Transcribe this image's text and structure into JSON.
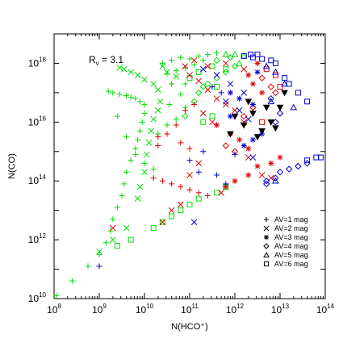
{
  "chart_data": {
    "type": "scatter",
    "xlabel": "N(HCO⁺)",
    "ylabel": "N(CO)",
    "x_log": true,
    "y_log": true,
    "xlim": [
      100000000.0,
      100000000000000.0
    ],
    "ylim": [
      10000000000.0,
      1e+19
    ],
    "x_ticks": [
      {
        "base": "10",
        "exp": "8",
        "value": 100000000.0
      },
      {
        "base": "10",
        "exp": "9",
        "value": 1000000000.0
      },
      {
        "base": "10",
        "exp": "10",
        "value": 10000000000.0
      },
      {
        "base": "10",
        "exp": "11",
        "value": 100000000000.0
      },
      {
        "base": "10",
        "exp": "12",
        "value": 1000000000000.0
      },
      {
        "base": "10",
        "exp": "13",
        "value": 10000000000000.0
      },
      {
        "base": "10",
        "exp": "14",
        "value": 100000000000000.0
      }
    ],
    "y_ticks": [
      {
        "base": "10",
        "exp": "10",
        "value": 10000000000.0
      },
      {
        "base": "10",
        "exp": "12",
        "value": 1000000000000.0
      },
      {
        "base": "10",
        "exp": "14",
        "value": 100000000000000.0
      },
      {
        "base": "10",
        "exp": "16",
        "value": 1e+16
      },
      {
        "base": "10",
        "exp": "18",
        "value": 1e+18
      }
    ],
    "annotation": {
      "main": "R",
      "sub": "v",
      "rest": " = 3.1"
    },
    "grid": false,
    "legend_position": "lower-right",
    "legend": [
      {
        "label": "AV=1 mag",
        "marker": "plus"
      },
      {
        "label": "AV=2 mag",
        "marker": "cross"
      },
      {
        "label": "AV=3 mag",
        "marker": "asterisk"
      },
      {
        "label": "AV=4 mag",
        "marker": "diamond"
      },
      {
        "label": "AV=5 mag",
        "marker": "triangle"
      },
      {
        "label": "AV=6 mag",
        "marker": "square"
      }
    ],
    "colors": {
      "green": "#00dd00",
      "red": "#dd0000",
      "blue": "#0000cc",
      "black": "#000000"
    },
    "series": [
      {
        "marker": "plus",
        "color": "green",
        "points": [
          [
            8.05,
            10.1
          ],
          [
            8.4,
            10.6
          ],
          [
            8.75,
            11.1
          ],
          [
            9.0,
            11.5
          ],
          [
            9.15,
            11.9
          ],
          [
            9.25,
            12.3
          ],
          [
            9.3,
            12.7
          ],
          [
            9.4,
            13.1
          ],
          [
            9.5,
            13.5
          ],
          [
            9.55,
            13.9
          ],
          [
            9.6,
            14.3
          ],
          [
            9.7,
            14.7
          ],
          [
            9.8,
            15.1
          ],
          [
            9.85,
            15.4
          ],
          [
            9.9,
            15.7
          ],
          [
            9.95,
            16.0
          ],
          [
            10.0,
            16.3
          ],
          [
            10.0,
            16.6
          ],
          [
            9.9,
            16.7
          ],
          [
            9.8,
            16.8
          ],
          [
            9.7,
            16.85
          ],
          [
            9.6,
            16.9
          ],
          [
            9.45,
            16.95
          ],
          [
            9.3,
            17.0
          ],
          [
            9.2,
            17.05
          ],
          [
            9.4,
            16.2
          ],
          [
            9.6,
            15.5
          ],
          [
            9.8,
            14.9
          ],
          [
            10.0,
            14.6
          ],
          [
            10.2,
            14.4
          ]
        ]
      },
      {
        "marker": "cross",
        "color": "green",
        "points": [
          [
            9.0,
            11.6
          ],
          [
            9.3,
            12.0
          ],
          [
            9.6,
            12.4
          ],
          [
            9.85,
            13.4
          ],
          [
            9.9,
            13.8
          ],
          [
            10.0,
            14.3
          ],
          [
            10.05,
            14.9
          ],
          [
            10.1,
            15.3
          ],
          [
            10.15,
            15.7
          ],
          [
            10.2,
            16.1
          ],
          [
            10.3,
            16.4
          ],
          [
            10.35,
            16.7
          ],
          [
            10.2,
            17.3
          ],
          [
            10.0,
            17.45
          ],
          [
            9.85,
            17.6
          ],
          [
            9.7,
            17.7
          ],
          [
            9.55,
            17.8
          ],
          [
            9.45,
            17.85
          ],
          [
            10.4,
            17.9
          ],
          [
            10.5,
            17.7
          ],
          [
            10.7,
            17.55
          ],
          [
            10.3,
            17.1
          ]
        ]
      },
      {
        "marker": "plus",
        "color": "green",
        "points": [
          [
            10.4,
            18.0
          ],
          [
            10.6,
            18.1
          ],
          [
            10.8,
            18.2
          ],
          [
            11.0,
            18.15
          ],
          [
            11.2,
            18.25
          ],
          [
            11.4,
            18.3
          ],
          [
            11.6,
            18.35
          ],
          [
            11.3,
            18.1
          ],
          [
            11.1,
            17.95
          ],
          [
            10.9,
            17.85
          ],
          [
            10.7,
            17.75
          ],
          [
            10.5,
            17.65
          ],
          [
            10.6,
            17.3
          ],
          [
            10.8,
            16.95
          ],
          [
            10.9,
            16.5
          ],
          [
            10.7,
            16.1
          ],
          [
            10.5,
            15.9
          ],
          [
            10.3,
            15.6
          ],
          [
            10.55,
            16.6
          ],
          [
            10.9,
            17.3
          ]
        ]
      },
      {
        "marker": "square",
        "color": "green",
        "points": [
          [
            10.2,
            12.4
          ],
          [
            10.4,
            12.6
          ],
          [
            10.6,
            12.8
          ],
          [
            10.8,
            13.0
          ],
          [
            11.0,
            13.2
          ],
          [
            9.7,
            12.0
          ],
          [
            9.4,
            11.8
          ],
          [
            11.2,
            13.4
          ],
          [
            11.6,
            13.6
          ],
          [
            11.8,
            13.8
          ],
          [
            11.5,
            16.2
          ],
          [
            11.3,
            16.0
          ],
          [
            11.6,
            17.2
          ],
          [
            11.8,
            17.8
          ],
          [
            11.2,
            17.7
          ],
          [
            11.0,
            17.5
          ],
          [
            11.5,
            17.9
          ]
        ]
      },
      {
        "marker": "diamond",
        "color": "green",
        "points": [
          [
            11.2,
            17.0
          ],
          [
            11.4,
            17.3
          ],
          [
            11.6,
            17.5
          ],
          [
            11.8,
            17.7
          ],
          [
            12.0,
            17.9
          ],
          [
            11.9,
            18.2
          ],
          [
            11.6,
            18.1
          ],
          [
            11.3,
            17.2
          ],
          [
            11.1,
            16.7
          ],
          [
            10.9,
            16.2
          ]
        ]
      },
      {
        "marker": "triangle",
        "color": "green",
        "points": [
          [
            12.1,
            18.0
          ],
          [
            12.2,
            18.25
          ],
          [
            12.0,
            18.3
          ],
          [
            11.8,
            18.3
          ]
        ]
      },
      {
        "marker": "plus",
        "color": "red",
        "points": [
          [
            10.2,
            14.1
          ],
          [
            10.4,
            14.0
          ],
          [
            10.6,
            13.9
          ],
          [
            10.8,
            13.8
          ],
          [
            11.0,
            13.7
          ],
          [
            11.2,
            13.6
          ],
          [
            11.4,
            13.5
          ],
          [
            10.3,
            15.2
          ],
          [
            10.5,
            15.6
          ],
          [
            10.7,
            15.9
          ],
          [
            10.9,
            16.4
          ],
          [
            11.1,
            16.6
          ],
          [
            10.3,
            15.5
          ],
          [
            10.8,
            15.3
          ],
          [
            11.0,
            15.1
          ]
        ]
      },
      {
        "marker": "cross",
        "color": "red",
        "points": [
          [
            9.3,
            12.4
          ],
          [
            10.9,
            17.9
          ],
          [
            11.1,
            18.1
          ],
          [
            11.0,
            17.6
          ],
          [
            11.2,
            17.4
          ],
          [
            11.4,
            17.1
          ],
          [
            11.6,
            16.8
          ],
          [
            11.8,
            16.6
          ],
          [
            12.0,
            16.4
          ],
          [
            12.2,
            16.0
          ],
          [
            11.3,
            16.3
          ],
          [
            11.5,
            16.0
          ],
          [
            11.2,
            14.6
          ],
          [
            11.0,
            14.2
          ],
          [
            12.3,
            14.8
          ],
          [
            12.6,
            14.2
          ],
          [
            12.8,
            14.1
          ],
          [
            11.7,
            13.6
          ],
          [
            10.8,
            13.2
          ],
          [
            10.6,
            13.0
          ],
          [
            10.4,
            12.6
          ],
          [
            11.8,
            18.0
          ],
          [
            11.4,
            17.9
          ],
          [
            12.2,
            17.8
          ]
        ]
      },
      {
        "marker": "asterisk",
        "color": "red",
        "points": [
          [
            11.8,
            13.8
          ],
          [
            12.0,
            14.0
          ],
          [
            12.3,
            14.2
          ],
          [
            12.5,
            14.5
          ],
          [
            12.8,
            14.6
          ],
          [
            13.0,
            14.8
          ],
          [
            12.5,
            18.0
          ],
          [
            12.3,
            17.6
          ],
          [
            12.4,
            17.3
          ],
          [
            12.6,
            17.0
          ],
          [
            11.6,
            15.9
          ],
          [
            11.9,
            15.6
          ],
          [
            12.1,
            15.4
          ],
          [
            12.3,
            15.1
          ]
        ]
      },
      {
        "marker": "diamond",
        "color": "red",
        "points": [
          [
            12.6,
            17.5
          ],
          [
            12.8,
            17.2
          ],
          [
            12.9,
            17.0
          ],
          [
            12.4,
            16.5
          ],
          [
            12.2,
            16.2
          ],
          [
            11.8,
            15.2
          ],
          [
            12.0,
            15.0
          ]
        ]
      },
      {
        "marker": "square",
        "color": "red",
        "points": [
          [
            12.7,
            17.8
          ],
          [
            12.9,
            17.6
          ],
          [
            13.0,
            17.2
          ],
          [
            12.6,
            16.0
          ]
        ]
      },
      {
        "marker": "plus",
        "color": "blue",
        "points": [
          [
            9.0,
            11.1
          ],
          [
            11.0,
            14.7
          ],
          [
            11.2,
            14.3
          ],
          [
            11.3,
            15.0
          ],
          [
            11.6,
            14.2
          ],
          [
            11.8,
            13.9
          ],
          [
            12.0,
            14.9
          ],
          [
            11.5,
            17.2
          ],
          [
            11.7,
            17.0
          ]
        ]
      },
      {
        "marker": "cross",
        "color": "blue",
        "points": [
          [
            11.3,
            17.8
          ],
          [
            11.6,
            17.6
          ],
          [
            11.9,
            17.3
          ],
          [
            12.2,
            17.0
          ],
          [
            11.1,
            12.6
          ],
          [
            12.4,
            14.8
          ],
          [
            11.8,
            16.7
          ],
          [
            12.1,
            16.4
          ],
          [
            12.3,
            16.1
          ]
        ]
      },
      {
        "marker": "asterisk",
        "color": "blue",
        "points": [
          [
            11.9,
            17.0
          ],
          [
            12.1,
            16.8
          ],
          [
            12.4,
            16.6
          ],
          [
            12.6,
            15.6
          ],
          [
            12.4,
            15.4
          ],
          [
            12.2,
            15.2
          ],
          [
            11.9,
            16.2
          ],
          [
            12.5,
            17.7
          ]
        ]
      },
      {
        "marker": "diamond",
        "color": "blue",
        "points": [
          [
            12.7,
            13.9
          ],
          [
            12.9,
            14.1
          ],
          [
            13.0,
            14.3
          ],
          [
            13.2,
            14.4
          ],
          [
            13.4,
            14.5
          ],
          [
            13.6,
            14.6
          ],
          [
            12.8,
            16.8
          ],
          [
            13.0,
            16.3
          ],
          [
            12.9,
            16.0
          ],
          [
            12.7,
            14.0
          ]
        ]
      },
      {
        "marker": "triangle",
        "color": "blue",
        "points": [
          [
            12.7,
            17.9
          ],
          [
            12.9,
            17.7
          ],
          [
            13.1,
            17.3
          ],
          [
            12.8,
            16.7
          ],
          [
            13.3,
            16.5
          ],
          [
            12.9,
            14.0
          ]
        ]
      },
      {
        "marker": "square",
        "color": "blue",
        "points": [
          [
            12.2,
            18.25
          ],
          [
            12.4,
            18.2
          ],
          [
            12.6,
            18.15
          ],
          [
            12.8,
            18.1
          ],
          [
            12.9,
            18.0
          ],
          [
            13.1,
            17.5
          ],
          [
            13.2,
            17.3
          ],
          [
            13.4,
            17.0
          ],
          [
            13.6,
            16.7
          ],
          [
            13.6,
            14.7
          ],
          [
            13.8,
            14.8
          ],
          [
            13.9,
            14.8
          ],
          [
            12.5,
            18.3
          ],
          [
            12.35,
            18.3
          ]
        ]
      },
      {
        "marker": "triangle-down",
        "color": "black",
        "points": [
          [
            12.0,
            16.2
          ],
          [
            12.2,
            15.9
          ],
          [
            12.4,
            16.3
          ],
          [
            12.6,
            15.7
          ],
          [
            12.8,
            16.0
          ],
          [
            13.0,
            16.5
          ],
          [
            13.1,
            17.0
          ],
          [
            12.3,
            16.7
          ],
          [
            12.7,
            16.5
          ],
          [
            12.9,
            15.8
          ],
          [
            11.9,
            15.6
          ],
          [
            12.5,
            15.5
          ]
        ]
      }
    ]
  }
}
